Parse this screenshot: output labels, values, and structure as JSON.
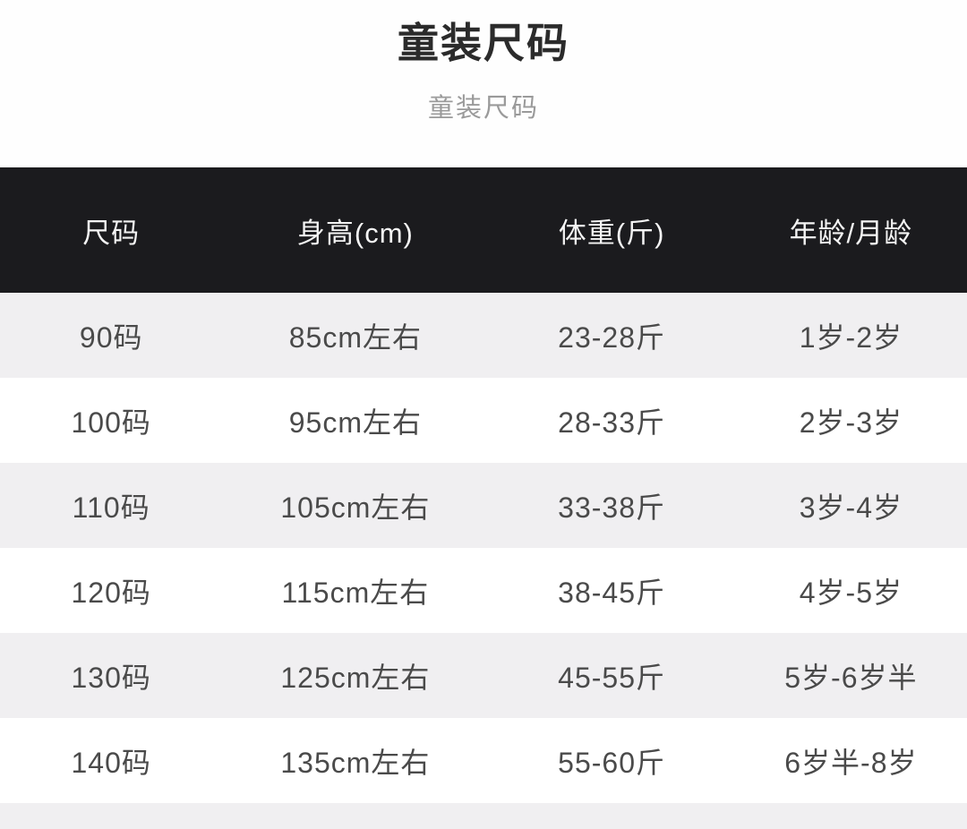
{
  "page": {
    "title": "童装尺码",
    "subtitle": "童装尺码"
  },
  "colors": {
    "header_bg": "#1b1b1e",
    "header_text": "#f4f4f4",
    "row_bg": "#ffffff",
    "row_alt_bg": "#f0eff1",
    "row_text": "#4a4a4a",
    "title_text": "#2b2b2b",
    "subtitle_text": "#9a9a9a"
  },
  "chart_data": {
    "type": "table",
    "title": "童装尺码",
    "subtitle": "童装尺码",
    "columns": [
      "尺码",
      "身高(cm)",
      "体重(斤)",
      "年龄/月龄"
    ],
    "rows": [
      [
        "90码",
        "85cm左右",
        "23-28斤",
        "1岁-2岁"
      ],
      [
        "100码",
        "95cm左右",
        "28-33斤",
        "2岁-3岁"
      ],
      [
        "110码",
        "105cm左右",
        "33-38斤",
        "3岁-4岁"
      ],
      [
        "120码",
        "115cm左右",
        "38-45斤",
        "4岁-5岁"
      ],
      [
        "130码",
        "125cm左右",
        "45-55斤",
        "5岁-6岁半"
      ],
      [
        "140码",
        "135cm左右",
        "55-60斤",
        "6岁半-8岁"
      ]
    ],
    "layout": {
      "striped": true,
      "stripe_rows": "odd",
      "header_style": "dark-bar",
      "column_alignment": "center"
    }
  }
}
